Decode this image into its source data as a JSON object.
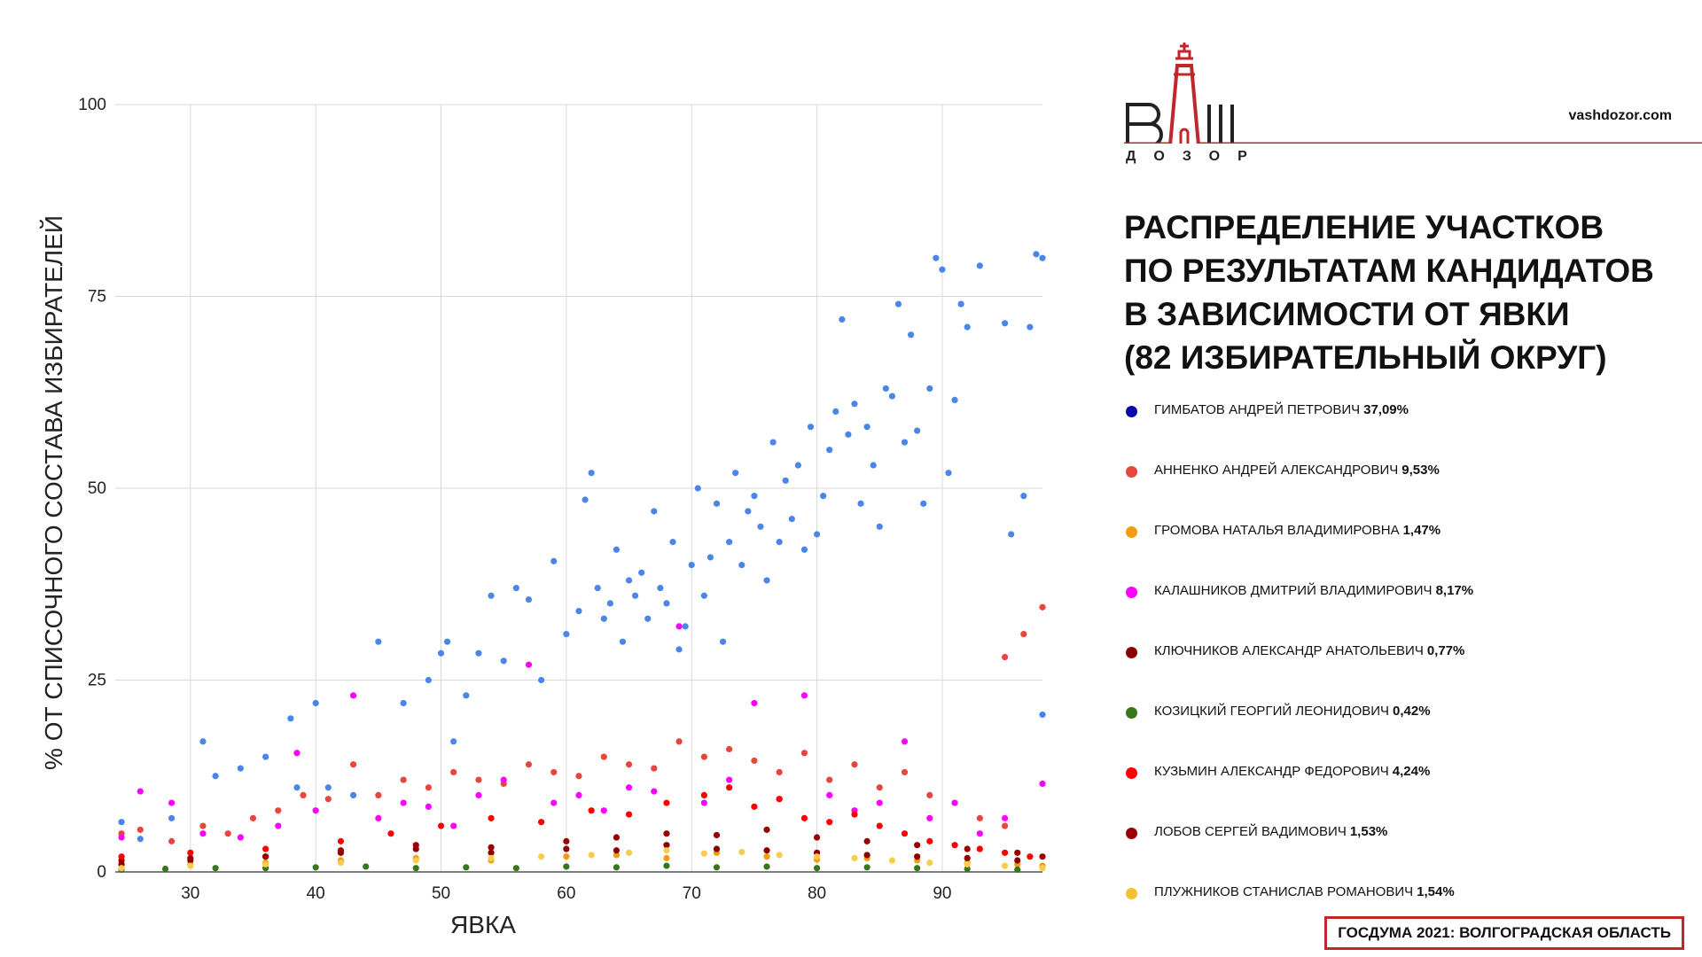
{
  "brand": {
    "logo_text": "ВАШ",
    "logo_subtext": "ДОЗОР",
    "site": "vashdozor.com",
    "accent_color": "#c0272d"
  },
  "title_lines": [
    "Распределение участков",
    "по результатам кандидатов",
    "в зависимости от явки",
    "(82 избирательный округ)"
  ],
  "footer": "ГОСДУМА 2021: ВОЛГОГРАДСКАЯ ОБЛАСТЬ",
  "chart_data": {
    "type": "scatter",
    "xlabel": "ЯВКА",
    "ylabel": "% ОТ СПИСОЧНОГО СОСТАВА ИЗБИРАТЕЛЕЙ",
    "xlim": [
      24,
      98
    ],
    "ylim": [
      0,
      100
    ],
    "xticks": [
      30,
      40,
      50,
      60,
      70,
      80,
      90
    ],
    "yticks": [
      0,
      25,
      50,
      75,
      100
    ],
    "grid": true,
    "legend_position": "right",
    "series": [
      {
        "name": "ГИМБАТОВ АНДРЕЙ ПЕТРОВИЧ",
        "share": "37,09%",
        "legend_color": "#0a0aa8",
        "point_color": "#4a86e8",
        "points": [
          [
            24.5,
            6.5
          ],
          [
            26,
            4.3
          ],
          [
            28.5,
            7
          ],
          [
            31,
            17
          ],
          [
            32,
            12.5
          ],
          [
            34,
            13.5
          ],
          [
            36,
            15
          ],
          [
            38,
            20
          ],
          [
            38.5,
            11
          ],
          [
            40,
            22
          ],
          [
            41,
            11
          ],
          [
            43,
            10
          ],
          [
            45,
            30
          ],
          [
            47,
            22
          ],
          [
            49,
            25
          ],
          [
            50,
            28.5
          ],
          [
            50.5,
            30
          ],
          [
            51,
            17
          ],
          [
            52,
            23
          ],
          [
            53,
            28.5
          ],
          [
            54,
            36
          ],
          [
            55,
            27.5
          ],
          [
            56,
            37
          ],
          [
            57,
            35.5
          ],
          [
            58,
            25
          ],
          [
            59,
            40.5
          ],
          [
            60,
            31
          ],
          [
            61,
            34
          ],
          [
            61.5,
            48.5
          ],
          [
            62,
            52
          ],
          [
            62.5,
            37
          ],
          [
            63,
            33
          ],
          [
            63.5,
            35
          ],
          [
            64,
            42
          ],
          [
            64.5,
            30
          ],
          [
            65,
            38
          ],
          [
            65.5,
            36
          ],
          [
            66,
            39
          ],
          [
            66.5,
            33
          ],
          [
            67,
            47
          ],
          [
            67.5,
            37
          ],
          [
            68,
            35
          ],
          [
            68.5,
            43
          ],
          [
            69,
            29
          ],
          [
            69.5,
            32
          ],
          [
            70,
            40
          ],
          [
            70.5,
            50
          ],
          [
            71,
            36
          ],
          [
            71.5,
            41
          ],
          [
            72,
            48
          ],
          [
            72.5,
            30
          ],
          [
            73,
            43
          ],
          [
            73.5,
            52
          ],
          [
            74,
            40
          ],
          [
            74.5,
            47
          ],
          [
            75,
            49
          ],
          [
            75.5,
            45
          ],
          [
            76,
            38
          ],
          [
            76.5,
            56
          ],
          [
            77,
            43
          ],
          [
            77.5,
            51
          ],
          [
            78,
            46
          ],
          [
            78.5,
            53
          ],
          [
            79,
            42
          ],
          [
            79.5,
            58
          ],
          [
            80,
            44
          ],
          [
            80.5,
            49
          ],
          [
            81,
            55
          ],
          [
            81.5,
            60
          ],
          [
            82,
            72
          ],
          [
            82.5,
            57
          ],
          [
            83,
            61
          ],
          [
            83.5,
            48
          ],
          [
            84,
            58
          ],
          [
            84.5,
            53
          ],
          [
            85,
            45
          ],
          [
            85.5,
            63
          ],
          [
            86,
            62
          ],
          [
            86.5,
            74
          ],
          [
            87,
            56
          ],
          [
            87.5,
            70
          ],
          [
            88,
            57.5
          ],
          [
            88.5,
            48
          ],
          [
            89,
            63
          ],
          [
            89.5,
            80
          ],
          [
            90,
            78.5
          ],
          [
            90.5,
            52
          ],
          [
            91,
            61.5
          ],
          [
            91.5,
            74
          ],
          [
            92,
            71
          ],
          [
            93,
            79
          ],
          [
            95,
            71.5
          ],
          [
            95.5,
            44
          ],
          [
            96.5,
            49
          ],
          [
            97,
            71
          ],
          [
            97.5,
            80.5
          ],
          [
            98,
            80
          ],
          [
            98,
            20.5
          ]
        ]
      },
      {
        "name": "АННЕНКО АНДРЕЙ АЛЕКСАНДРОВИЧ",
        "share": "9,53%",
        "legend_color": "#e8453c",
        "point_color": "#e8453c",
        "points": [
          [
            24.5,
            5
          ],
          [
            26,
            5.5
          ],
          [
            28.5,
            4
          ],
          [
            31,
            6
          ],
          [
            33,
            5
          ],
          [
            35,
            7
          ],
          [
            37,
            8
          ],
          [
            39,
            10
          ],
          [
            41,
            9.5
          ],
          [
            43,
            14
          ],
          [
            45,
            10
          ],
          [
            47,
            12
          ],
          [
            49,
            11
          ],
          [
            51,
            13
          ],
          [
            53,
            12
          ],
          [
            55,
            11.5
          ],
          [
            57,
            14
          ],
          [
            59,
            13
          ],
          [
            61,
            12.5
          ],
          [
            63,
            15
          ],
          [
            65,
            14
          ],
          [
            67,
            13.5
          ],
          [
            69,
            17
          ],
          [
            71,
            15
          ],
          [
            73,
            16
          ],
          [
            75,
            14.5
          ],
          [
            77,
            13
          ],
          [
            79,
            15.5
          ],
          [
            81,
            12
          ],
          [
            83,
            14
          ],
          [
            85,
            11
          ],
          [
            87,
            13
          ],
          [
            89,
            10
          ],
          [
            91,
            9
          ],
          [
            93,
            7
          ],
          [
            95,
            6
          ],
          [
            95,
            28
          ],
          [
            96.5,
            31
          ],
          [
            98,
            34.5
          ]
        ]
      },
      {
        "name": "ГРОМОВА НАТАЛЬЯ ВЛАДИМИРОВНА",
        "share": "1,47%",
        "legend_color": "#f39c12",
        "point_color": "#f39c12",
        "points": [
          [
            24.5,
            0.8
          ],
          [
            30,
            1
          ],
          [
            36,
            1.2
          ],
          [
            42,
            1.5
          ],
          [
            48,
            1.8
          ],
          [
            54,
            1.5
          ],
          [
            60,
            2
          ],
          [
            64,
            2.2
          ],
          [
            68,
            1.8
          ],
          [
            72,
            2.5
          ],
          [
            76,
            2
          ],
          [
            80,
            1.6
          ],
          [
            84,
            1.8
          ],
          [
            88,
            1.5
          ],
          [
            92,
            1.2
          ],
          [
            96,
            1
          ],
          [
            98,
            0.8
          ]
        ]
      },
      {
        "name": "КАЛАШНИКОВ ДМИТРИЙ ВЛАДИМИРОВИЧ",
        "share": "8,17%",
        "legend_color": "#ff00ff",
        "point_color": "#ff00ff",
        "points": [
          [
            24.5,
            4.5
          ],
          [
            26,
            10.5
          ],
          [
            28.5,
            9
          ],
          [
            31,
            5
          ],
          [
            34,
            4.5
          ],
          [
            37,
            6
          ],
          [
            38.5,
            15.5
          ],
          [
            40,
            8
          ],
          [
            43,
            23
          ],
          [
            45,
            7
          ],
          [
            47,
            9
          ],
          [
            49,
            8.5
          ],
          [
            51,
            6
          ],
          [
            53,
            10
          ],
          [
            55,
            12
          ],
          [
            57,
            27
          ],
          [
            59,
            9
          ],
          [
            61,
            10
          ],
          [
            63,
            8
          ],
          [
            65,
            11
          ],
          [
            67,
            10.5
          ],
          [
            69,
            32
          ],
          [
            71,
            9
          ],
          [
            73,
            12
          ],
          [
            75,
            22
          ],
          [
            77,
            9.5
          ],
          [
            79,
            23
          ],
          [
            81,
            10
          ],
          [
            83,
            8
          ],
          [
            85,
            9
          ],
          [
            87,
            17
          ],
          [
            89,
            7
          ],
          [
            91,
            9
          ],
          [
            93,
            5
          ],
          [
            95,
            7
          ],
          [
            98,
            11.5
          ]
        ]
      },
      {
        "name": "КЛЮЧНИКОВ АЛЕКСАНДР АНАТОЛЬЕВИЧ",
        "share": "0,77%",
        "legend_color": "#8b0000",
        "point_color": "#8b0000",
        "points": [
          [
            24.5,
            1.5
          ],
          [
            30,
            1.8
          ],
          [
            36,
            2
          ],
          [
            42,
            2.5
          ],
          [
            48,
            3
          ],
          [
            54,
            2.5
          ],
          [
            60,
            3
          ],
          [
            64,
            2.8
          ],
          [
            68,
            3.5
          ],
          [
            72,
            3
          ],
          [
            76,
            2.8
          ],
          [
            80,
            2.5
          ],
          [
            84,
            2.2
          ],
          [
            88,
            2
          ],
          [
            92,
            1.8
          ],
          [
            96,
            1.5
          ]
        ]
      },
      {
        "name": "КОЗИЦКИЙ ГЕОРГИЙ ЛЕОНИДОВИЧ",
        "share": "0,42%",
        "legend_color": "#38761d",
        "point_color": "#38761d",
        "points": [
          [
            24.5,
            0.3
          ],
          [
            28,
            0.4
          ],
          [
            32,
            0.5
          ],
          [
            36,
            0.5
          ],
          [
            40,
            0.6
          ],
          [
            44,
            0.7
          ],
          [
            48,
            0.5
          ],
          [
            52,
            0.6
          ],
          [
            56,
            0.5
          ],
          [
            60,
            0.7
          ],
          [
            64,
            0.6
          ],
          [
            68,
            0.8
          ],
          [
            72,
            0.6
          ],
          [
            76,
            0.7
          ],
          [
            80,
            0.5
          ],
          [
            84,
            0.6
          ],
          [
            88,
            0.5
          ],
          [
            92,
            0.4
          ],
          [
            96,
            0.3
          ]
        ]
      },
      {
        "name": "КУЗЬМИН АЛЕКСАНДР ФЕДОРОВИЧ",
        "share": "4,24%",
        "legend_color": "#ff0000",
        "point_color": "#ff0000",
        "points": [
          [
            24.5,
            2
          ],
          [
            30,
            2.5
          ],
          [
            36,
            3
          ],
          [
            42,
            4
          ],
          [
            46,
            5
          ],
          [
            50,
            6
          ],
          [
            54,
            7
          ],
          [
            58,
            6.5
          ],
          [
            62,
            8
          ],
          [
            65,
            7.5
          ],
          [
            68,
            9
          ],
          [
            71,
            10
          ],
          [
            73,
            11
          ],
          [
            75,
            8.5
          ],
          [
            77,
            9.5
          ],
          [
            79,
            7
          ],
          [
            81,
            6.5
          ],
          [
            83,
            7.5
          ],
          [
            85,
            6
          ],
          [
            87,
            5
          ],
          [
            89,
            4
          ],
          [
            91,
            3.5
          ],
          [
            93,
            3
          ],
          [
            95,
            2.5
          ],
          [
            97,
            2
          ]
        ]
      },
      {
        "name": "ЛОБОВ СЕРГЕЙ ВАДИМОВИЧ",
        "share": "1,53%",
        "legend_color": "#990000",
        "point_color": "#990000",
        "points": [
          [
            24.5,
            1
          ],
          [
            30,
            1.5
          ],
          [
            36,
            2
          ],
          [
            42,
            2.8
          ],
          [
            48,
            3.5
          ],
          [
            54,
            3.2
          ],
          [
            60,
            4
          ],
          [
            64,
            4.5
          ],
          [
            68,
            5
          ],
          [
            72,
            4.8
          ],
          [
            76,
            5.5
          ],
          [
            80,
            4.5
          ],
          [
            84,
            4
          ],
          [
            88,
            3.5
          ],
          [
            92,
            3
          ],
          [
            96,
            2.5
          ],
          [
            98,
            2
          ]
        ]
      },
      {
        "name": "ПЛУЖНИКОВ СТАНИСЛАВ РОМАНОВИЧ",
        "share": "1,54%",
        "legend_color": "#f1c232",
        "point_color": "#f6cd4c",
        "points": [
          [
            24.5,
            0.5
          ],
          [
            30,
            0.8
          ],
          [
            36,
            1
          ],
          [
            42,
            1.2
          ],
          [
            48,
            1.5
          ],
          [
            54,
            1.8
          ],
          [
            58,
            2
          ],
          [
            62,
            2.2
          ],
          [
            65,
            2.5
          ],
          [
            68,
            2.8
          ],
          [
            71,
            2.4
          ],
          [
            74,
            2.6
          ],
          [
            77,
            2.2
          ],
          [
            80,
            2
          ],
          [
            83,
            1.8
          ],
          [
            86,
            1.5
          ],
          [
            89,
            1.2
          ],
          [
            92,
            1
          ],
          [
            95,
            0.8
          ],
          [
            98,
            0.5
          ]
        ]
      }
    ]
  }
}
